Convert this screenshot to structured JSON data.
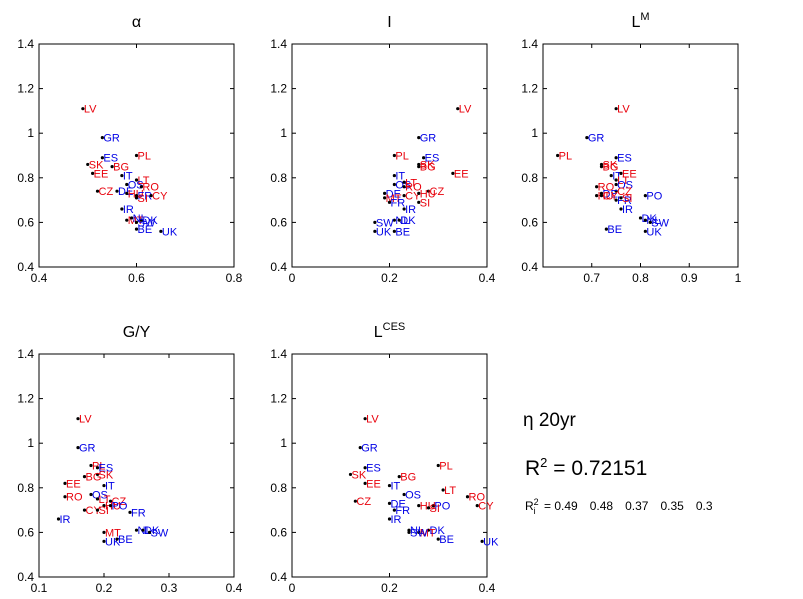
{
  "annotations": {
    "eta_label": "η 20yr",
    "r2_prefix": "R",
    "r2_sup": "2",
    "r2_text": " = 0.72151",
    "ri_prefix": "R",
    "ri_sup": "2",
    "ri_sub": "i",
    "ri_eq": " = ",
    "ri_values": [
      "0.49",
      "0.48",
      "0.37",
      "0.35",
      "0.3"
    ]
  },
  "colors": {
    "red_group": "#e8000b",
    "blue_group": "#0000e6",
    "axis": "#000000"
  },
  "chart_data": [
    {
      "type": "scatter",
      "title": "α",
      "title_sup": "",
      "xlim": [
        0.4,
        0.8
      ],
      "ylim": [
        0.4,
        1.4
      ],
      "xticks": [
        0.4,
        0.6,
        0.8
      ],
      "yticks": [
        0.4,
        0.6,
        0.8,
        1,
        1.2,
        1.4
      ],
      "xticklabels": [
        "0.4",
        "0.6",
        "0.8"
      ],
      "yticklabels": [
        "0.4",
        "0.6",
        "0.8",
        "1",
        "1.2",
        "1.4"
      ],
      "points": [
        {
          "label": "LV",
          "group": "red",
          "x": 0.49,
          "y": 1.11
        },
        {
          "label": "GR",
          "group": "blue",
          "x": 0.53,
          "y": 0.98
        },
        {
          "label": "PL",
          "group": "red",
          "x": 0.6,
          "y": 0.9
        },
        {
          "label": "ES",
          "group": "blue",
          "x": 0.53,
          "y": 0.89
        },
        {
          "label": "SK",
          "group": "red",
          "x": 0.5,
          "y": 0.86
        },
        {
          "label": "BG",
          "group": "red",
          "x": 0.55,
          "y": 0.85
        },
        {
          "label": "EE",
          "group": "red",
          "x": 0.51,
          "y": 0.82
        },
        {
          "label": "IT",
          "group": "blue",
          "x": 0.57,
          "y": 0.81
        },
        {
          "label": "LT",
          "group": "red",
          "x": 0.6,
          "y": 0.79
        },
        {
          "label": "OS",
          "group": "blue",
          "x": 0.58,
          "y": 0.77
        },
        {
          "label": "RO",
          "group": "red",
          "x": 0.61,
          "y": 0.76
        },
        {
          "label": "CZ",
          "group": "red",
          "x": 0.52,
          "y": 0.74
        },
        {
          "label": "DE",
          "group": "blue",
          "x": 0.56,
          "y": 0.74
        },
        {
          "label": "HU",
          "group": "red",
          "x": 0.58,
          "y": 0.73
        },
        {
          "label": "FR",
          "group": "blue",
          "x": 0.6,
          "y": 0.72
        },
        {
          "label": "CY",
          "group": "red",
          "x": 0.63,
          "y": 0.72
        },
        {
          "label": "SI",
          "group": "red",
          "x": 0.6,
          "y": 0.71
        },
        {
          "label": "IR",
          "group": "blue",
          "x": 0.57,
          "y": 0.66
        },
        {
          "label": "MT",
          "group": "red",
          "x": 0.58,
          "y": 0.61
        },
        {
          "label": "NL",
          "group": "blue",
          "x": 0.59,
          "y": 0.62
        },
        {
          "label": "DK",
          "group": "blue",
          "x": 0.61,
          "y": 0.61
        },
        {
          "label": "SW",
          "group": "blue",
          "x": 0.6,
          "y": 0.6
        },
        {
          "label": "BE",
          "group": "blue",
          "x": 0.6,
          "y": 0.57
        },
        {
          "label": "UK",
          "group": "blue",
          "x": 0.65,
          "y": 0.56
        }
      ]
    },
    {
      "type": "scatter",
      "title": "I",
      "title_sup": "",
      "xlim": [
        0,
        0.4
      ],
      "ylim": [
        0.4,
        1.4
      ],
      "xticks": [
        0,
        0.2,
        0.4
      ],
      "yticks": [
        0.4,
        0.6,
        0.8,
        1,
        1.2,
        1.4
      ],
      "xticklabels": [
        "0",
        "0.2",
        "0.4"
      ],
      "yticklabels": [
        "0.4",
        "0.6",
        "0.8",
        "1",
        "1.2",
        "1.4"
      ],
      "points": [
        {
          "label": "LV",
          "group": "red",
          "x": 0.34,
          "y": 1.11
        },
        {
          "label": "GR",
          "group": "blue",
          "x": 0.26,
          "y": 0.98
        },
        {
          "label": "PL",
          "group": "red",
          "x": 0.21,
          "y": 0.9
        },
        {
          "label": "ES",
          "group": "blue",
          "x": 0.27,
          "y": 0.89
        },
        {
          "label": "SK",
          "group": "red",
          "x": 0.26,
          "y": 0.86
        },
        {
          "label": "BG",
          "group": "red",
          "x": 0.26,
          "y": 0.85
        },
        {
          "label": "EE",
          "group": "red",
          "x": 0.33,
          "y": 0.82
        },
        {
          "label": "IT",
          "group": "blue",
          "x": 0.21,
          "y": 0.81
        },
        {
          "label": "OS",
          "group": "blue",
          "x": 0.21,
          "y": 0.77
        },
        {
          "label": "LT",
          "group": "red",
          "x": 0.23,
          "y": 0.78
        },
        {
          "label": "RO",
          "group": "red",
          "x": 0.23,
          "y": 0.76
        },
        {
          "label": "CZ",
          "group": "red",
          "x": 0.28,
          "y": 0.74
        },
        {
          "label": "DE",
          "group": "blue",
          "x": 0.19,
          "y": 0.73
        },
        {
          "label": "CY",
          "group": "red",
          "x": 0.23,
          "y": 0.72
        },
        {
          "label": "HU",
          "group": "red",
          "x": 0.26,
          "y": 0.73
        },
        {
          "label": "MT",
          "group": "red",
          "x": 0.19,
          "y": 0.71
        },
        {
          "label": "FR",
          "group": "blue",
          "x": 0.2,
          "y": 0.69
        },
        {
          "label": "SI",
          "group": "red",
          "x": 0.26,
          "y": 0.69
        },
        {
          "label": "IR",
          "group": "blue",
          "x": 0.23,
          "y": 0.66
        },
        {
          "label": "NL",
          "group": "blue",
          "x": 0.21,
          "y": 0.61
        },
        {
          "label": "DK",
          "group": "blue",
          "x": 0.22,
          "y": 0.61
        },
        {
          "label": "SW",
          "group": "blue",
          "x": 0.17,
          "y": 0.6
        },
        {
          "label": "UK",
          "group": "blue",
          "x": 0.17,
          "y": 0.56
        },
        {
          "label": "BE",
          "group": "blue",
          "x": 0.21,
          "y": 0.56
        }
      ]
    },
    {
      "type": "scatter",
      "title": "L",
      "title_sup": "M",
      "xlim": [
        0.6,
        1
      ],
      "ylim": [
        0.4,
        1.4
      ],
      "xticks": [
        0.7,
        0.8,
        0.9,
        1
      ],
      "yticks": [
        0.4,
        0.6,
        0.8,
        1,
        1.2,
        1.4
      ],
      "xticklabels": [
        "0.7",
        "0.8",
        "0.9",
        "1"
      ],
      "yticklabels": [
        "0.4",
        "0.6",
        "0.8",
        "1",
        "1.2",
        "1.4"
      ],
      "points": [
        {
          "label": "LV",
          "group": "red",
          "x": 0.75,
          "y": 1.11
        },
        {
          "label": "GR",
          "group": "blue",
          "x": 0.69,
          "y": 0.98
        },
        {
          "label": "PL",
          "group": "red",
          "x": 0.63,
          "y": 0.9
        },
        {
          "label": "ES",
          "group": "blue",
          "x": 0.75,
          "y": 0.89
        },
        {
          "label": "SK",
          "group": "red",
          "x": 0.72,
          "y": 0.86
        },
        {
          "label": "BG",
          "group": "red",
          "x": 0.72,
          "y": 0.85
        },
        {
          "label": "IT",
          "group": "blue",
          "x": 0.74,
          "y": 0.81
        },
        {
          "label": "EE",
          "group": "red",
          "x": 0.76,
          "y": 0.82
        },
        {
          "label": "LT",
          "group": "red",
          "x": 0.75,
          "y": 0.79
        },
        {
          "label": "OS",
          "group": "blue",
          "x": 0.75,
          "y": 0.77
        },
        {
          "label": "RO",
          "group": "red",
          "x": 0.71,
          "y": 0.76
        },
        {
          "label": "CZ",
          "group": "red",
          "x": 0.75,
          "y": 0.74
        },
        {
          "label": "DE",
          "group": "blue",
          "x": 0.72,
          "y": 0.73
        },
        {
          "label": "HU",
          "group": "red",
          "x": 0.71,
          "y": 0.72
        },
        {
          "label": "CY",
          "group": "red",
          "x": 0.72,
          "y": 0.72
        },
        {
          "label": "PO",
          "group": "blue",
          "x": 0.81,
          "y": 0.72
        },
        {
          "label": "FR",
          "group": "blue",
          "x": 0.75,
          "y": 0.7
        },
        {
          "label": "SI",
          "group": "red",
          "x": 0.76,
          "y": 0.71
        },
        {
          "label": "IR",
          "group": "blue",
          "x": 0.76,
          "y": 0.66
        },
        {
          "label": "DK",
          "group": "blue",
          "x": 0.8,
          "y": 0.62
        },
        {
          "label": "NL",
          "group": "blue",
          "x": 0.81,
          "y": 0.61
        },
        {
          "label": "SW",
          "group": "blue",
          "x": 0.82,
          "y": 0.6
        },
        {
          "label": "BE",
          "group": "blue",
          "x": 0.73,
          "y": 0.57
        },
        {
          "label": "UK",
          "group": "blue",
          "x": 0.81,
          "y": 0.56
        }
      ]
    },
    {
      "type": "scatter",
      "title": "G/Y",
      "title_sup": "",
      "xlim": [
        0.1,
        0.4
      ],
      "ylim": [
        0.4,
        1.4
      ],
      "xticks": [
        0.1,
        0.2,
        0.3,
        0.4
      ],
      "yticks": [
        0.4,
        0.6,
        0.8,
        1,
        1.2,
        1.4
      ],
      "xticklabels": [
        "0.1",
        "0.2",
        "0.3",
        "0.4"
      ],
      "yticklabels": [
        "0.4",
        "0.6",
        "0.8",
        "1",
        "1.2",
        "1.4"
      ],
      "points": [
        {
          "label": "LV",
          "group": "red",
          "x": 0.16,
          "y": 1.11
        },
        {
          "label": "GR",
          "group": "blue",
          "x": 0.16,
          "y": 0.98
        },
        {
          "label": "PL",
          "group": "red",
          "x": 0.18,
          "y": 0.9
        },
        {
          "label": "ES",
          "group": "blue",
          "x": 0.19,
          "y": 0.89
        },
        {
          "label": "SK",
          "group": "red",
          "x": 0.19,
          "y": 0.86
        },
        {
          "label": "BG",
          "group": "red",
          "x": 0.17,
          "y": 0.85
        },
        {
          "label": "EE",
          "group": "red",
          "x": 0.14,
          "y": 0.82
        },
        {
          "label": "IT",
          "group": "blue",
          "x": 0.2,
          "y": 0.81
        },
        {
          "label": "OS",
          "group": "blue",
          "x": 0.18,
          "y": 0.77
        },
        {
          "label": "RO",
          "group": "red",
          "x": 0.14,
          "y": 0.76
        },
        {
          "label": "LT",
          "group": "red",
          "x": 0.19,
          "y": 0.75
        },
        {
          "label": "CZ",
          "group": "red",
          "x": 0.21,
          "y": 0.74
        },
        {
          "label": "HU",
          "group": "red",
          "x": 0.2,
          "y": 0.72
        },
        {
          "label": "CY",
          "group": "red",
          "x": 0.17,
          "y": 0.7
        },
        {
          "label": "SI",
          "group": "red",
          "x": 0.19,
          "y": 0.7
        },
        {
          "label": "PO",
          "group": "blue",
          "x": 0.21,
          "y": 0.72
        },
        {
          "label": "FR",
          "group": "blue",
          "x": 0.24,
          "y": 0.69
        },
        {
          "label": "IR",
          "group": "blue",
          "x": 0.13,
          "y": 0.66
        },
        {
          "label": "MT",
          "group": "red",
          "x": 0.2,
          "y": 0.6
        },
        {
          "label": "NL",
          "group": "blue",
          "x": 0.25,
          "y": 0.61
        },
        {
          "label": "DK",
          "group": "blue",
          "x": 0.26,
          "y": 0.61
        },
        {
          "label": "SW",
          "group": "blue",
          "x": 0.27,
          "y": 0.6
        },
        {
          "label": "UK",
          "group": "blue",
          "x": 0.2,
          "y": 0.56
        },
        {
          "label": "BE",
          "group": "blue",
          "x": 0.22,
          "y": 0.57
        }
      ]
    },
    {
      "type": "scatter",
      "title": "L",
      "title_sup": "CES",
      "xlim": [
        0,
        0.4
      ],
      "ylim": [
        0.4,
        1.4
      ],
      "xticks": [
        0,
        0.2,
        0.4
      ],
      "yticks": [
        0.4,
        0.6,
        0.8,
        1,
        1.2,
        1.4
      ],
      "xticklabels": [
        "0",
        "0.2",
        "0.4"
      ],
      "yticklabels": [
        "0.4",
        "0.6",
        "0.8",
        "1",
        "1.2",
        "1.4"
      ],
      "points": [
        {
          "label": "LV",
          "group": "red",
          "x": 0.15,
          "y": 1.11
        },
        {
          "label": "GR",
          "group": "blue",
          "x": 0.14,
          "y": 0.98
        },
        {
          "label": "PL",
          "group": "red",
          "x": 0.3,
          "y": 0.9
        },
        {
          "label": "ES",
          "group": "blue",
          "x": 0.15,
          "y": 0.89
        },
        {
          "label": "SK",
          "group": "red",
          "x": 0.12,
          "y": 0.86
        },
        {
          "label": "BG",
          "group": "red",
          "x": 0.22,
          "y": 0.85
        },
        {
          "label": "EE",
          "group": "red",
          "x": 0.15,
          "y": 0.82
        },
        {
          "label": "IT",
          "group": "blue",
          "x": 0.2,
          "y": 0.81
        },
        {
          "label": "LT",
          "group": "red",
          "x": 0.31,
          "y": 0.79
        },
        {
          "label": "OS",
          "group": "blue",
          "x": 0.23,
          "y": 0.77
        },
        {
          "label": "RO",
          "group": "red",
          "x": 0.36,
          "y": 0.76
        },
        {
          "label": "CZ",
          "group": "red",
          "x": 0.13,
          "y": 0.74
        },
        {
          "label": "DE",
          "group": "blue",
          "x": 0.2,
          "y": 0.73
        },
        {
          "label": "CY",
          "group": "red",
          "x": 0.38,
          "y": 0.72
        },
        {
          "label": "HU",
          "group": "red",
          "x": 0.26,
          "y": 0.72
        },
        {
          "label": "PO",
          "group": "blue",
          "x": 0.29,
          "y": 0.72
        },
        {
          "label": "SI",
          "group": "red",
          "x": 0.28,
          "y": 0.71
        },
        {
          "label": "FR",
          "group": "blue",
          "x": 0.21,
          "y": 0.7
        },
        {
          "label": "IR",
          "group": "blue",
          "x": 0.2,
          "y": 0.66
        },
        {
          "label": "NL",
          "group": "blue",
          "x": 0.24,
          "y": 0.61
        },
        {
          "label": "DK",
          "group": "blue",
          "x": 0.28,
          "y": 0.61
        },
        {
          "label": "MT",
          "group": "red",
          "x": 0.26,
          "y": 0.6
        },
        {
          "label": "SW",
          "group": "blue",
          "x": 0.24,
          "y": 0.6
        },
        {
          "label": "BE",
          "group": "blue",
          "x": 0.3,
          "y": 0.57
        },
        {
          "label": "UK",
          "group": "blue",
          "x": 0.39,
          "y": 0.56
        }
      ]
    }
  ]
}
